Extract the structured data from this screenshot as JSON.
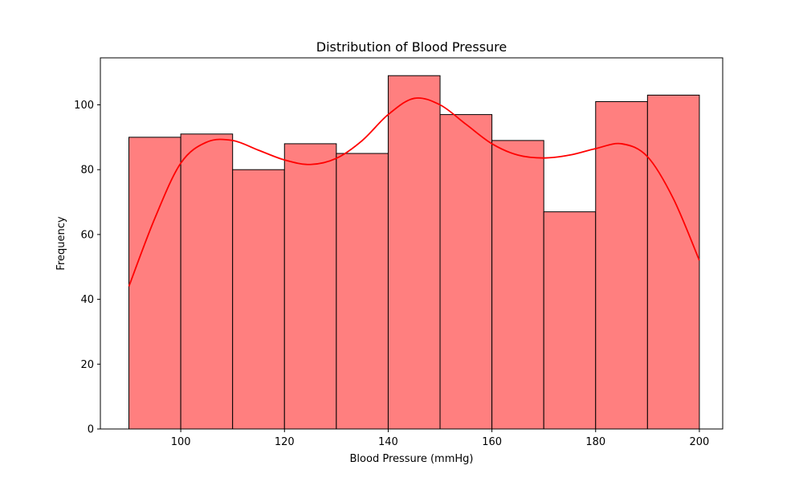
{
  "chart_data": {
    "type": "bar",
    "title": "Distribution of Blood Pressure",
    "xlabel": "Blood Pressure (mmHg)",
    "ylabel": "Frequency",
    "xlim": [
      84.5,
      204.5
    ],
    "ylim": [
      0,
      114.5
    ],
    "x_ticks": [
      100,
      120,
      140,
      160,
      180,
      200
    ],
    "y_ticks": [
      0,
      20,
      40,
      60,
      80,
      100
    ],
    "bin_edges": [
      90,
      100,
      110,
      120,
      130,
      140,
      150,
      160,
      170,
      180,
      190,
      200
    ],
    "values": [
      90,
      91,
      80,
      88,
      85,
      109,
      97,
      89,
      67,
      101,
      103
    ],
    "bar_color": "#ff7f7f",
    "bar_edge_color": "#000000",
    "kde": {
      "x": [
        90,
        95,
        100,
        105,
        110,
        115,
        120,
        125,
        130,
        135,
        140,
        145,
        150,
        155,
        160,
        165,
        170,
        175,
        180,
        185,
        190,
        195,
        200
      ],
      "y": [
        44,
        65,
        82,
        88.5,
        89,
        86,
        83,
        81.6,
        83.5,
        89,
        97,
        102,
        100,
        94,
        88,
        84.5,
        83.6,
        84.5,
        86.5,
        88,
        84,
        71,
        52
      ],
      "color": "#ff0000"
    },
    "grid": false,
    "legend": "none"
  }
}
